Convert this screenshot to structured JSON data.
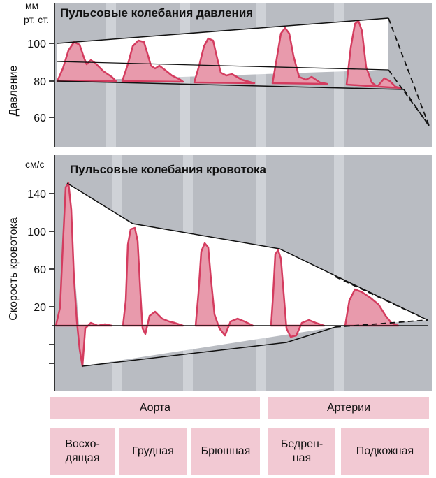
{
  "colors": {
    "panel": "#b9bcc2",
    "panel_light": "#cfd2d7",
    "wave_fill": "#e89aac",
    "wave_line": "#d43c5f",
    "label_bg": "#f2c9d3"
  },
  "pressure_panel": {
    "unit_line1": "мм",
    "unit_line2": "рт. ст.",
    "title": "Пульсовые колебания давления",
    "axis_title": "Давление",
    "ticks": [
      "100",
      "80",
      "60"
    ]
  },
  "flow_panel": {
    "unit": "см/с",
    "title": "Пульсовые колебания кровотока",
    "axis_title": "Скорость кровотока",
    "ticks": [
      "140",
      "100",
      "60",
      "20"
    ]
  },
  "groups": {
    "aorta": "Аорта",
    "arteries": "Артерии"
  },
  "segments": {
    "ascending_line1": "Восхо-",
    "ascending_line2": "дящая",
    "thoracic": "Грудная",
    "abdominal": "Брюшная",
    "femoral_line1": "Бедрен-",
    "femoral_line2": "ная",
    "subcutaneous": "Подкожная"
  }
}
